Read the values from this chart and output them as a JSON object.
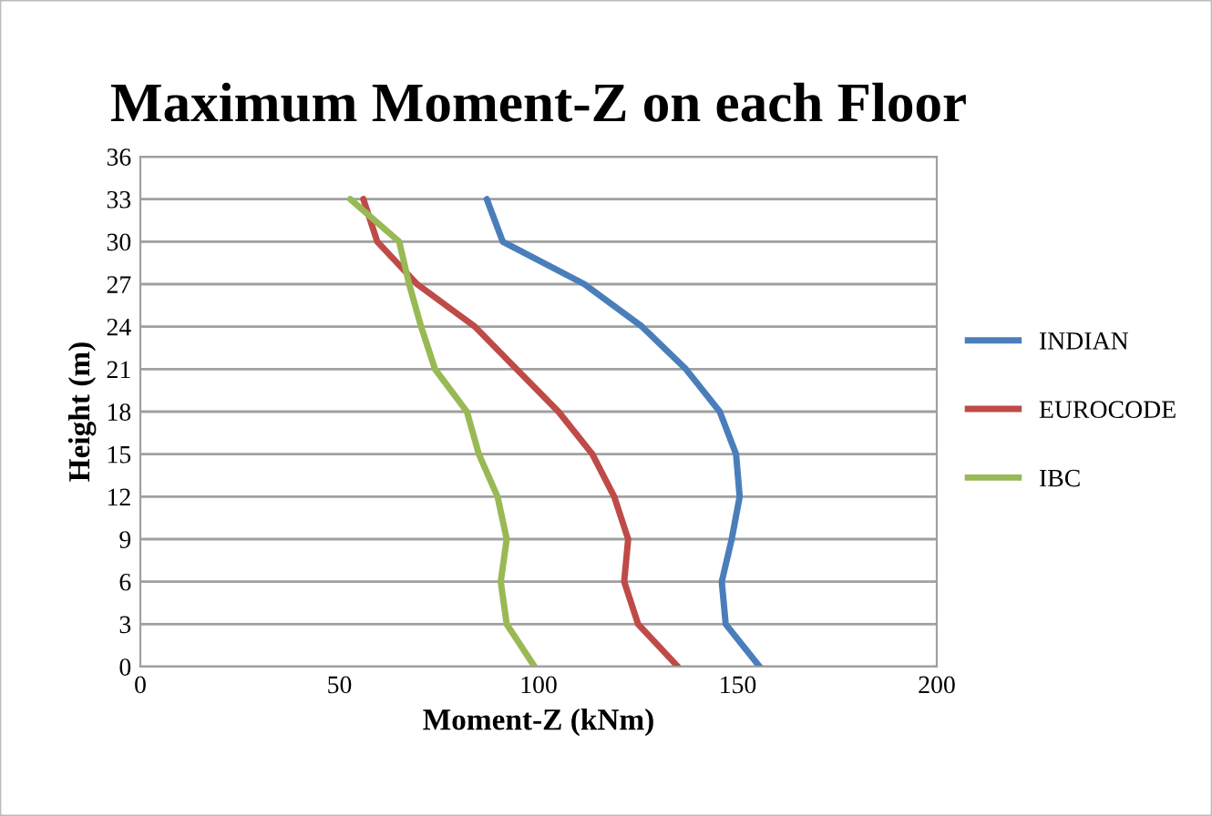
{
  "chart_data": {
    "type": "line",
    "title": "Maximum Moment-Z on each Floor",
    "xlabel": "Moment-Z (kNm)",
    "ylabel": "Height (m)",
    "xlim": [
      0,
      200
    ],
    "xticks": [
      0,
      50,
      100,
      150,
      200
    ],
    "ylim": [
      0,
      36
    ],
    "yticks": [
      0,
      3,
      6,
      9,
      12,
      15,
      18,
      21,
      24,
      27,
      30,
      33,
      36
    ],
    "grid": "y",
    "legend": "right",
    "marker": "none",
    "line_style": "solid",
    "series": [
      {
        "name": "INDIAN",
        "color": "#4a7ebb",
        "x": [
          155.5,
          147,
          146,
          148.5,
          150.5,
          149.6,
          145.5,
          137,
          126,
          111.5,
          91,
          87
        ],
        "values": [
          0,
          3,
          6,
          9,
          12,
          15,
          18,
          21,
          24,
          27,
          30,
          33
        ]
      },
      {
        "name": "EUROCODE",
        "color": "#be4b48",
        "x": [
          135,
          125,
          121.5,
          122.5,
          119,
          113.5,
          105,
          94.5,
          84,
          69.5,
          59.5,
          56
        ],
        "values": [
          0,
          3,
          6,
          9,
          12,
          15,
          18,
          21,
          24,
          27,
          30,
          33
        ]
      },
      {
        "name": "IBC",
        "color": "#98b954",
        "x": [
          99,
          92,
          90.5,
          92,
          89.7,
          85,
          82,
          74,
          70.5,
          67.5,
          65,
          52.7
        ],
        "values": [
          0,
          3,
          6,
          9,
          12,
          15,
          18,
          21,
          24,
          27,
          30,
          33
        ]
      }
    ]
  }
}
